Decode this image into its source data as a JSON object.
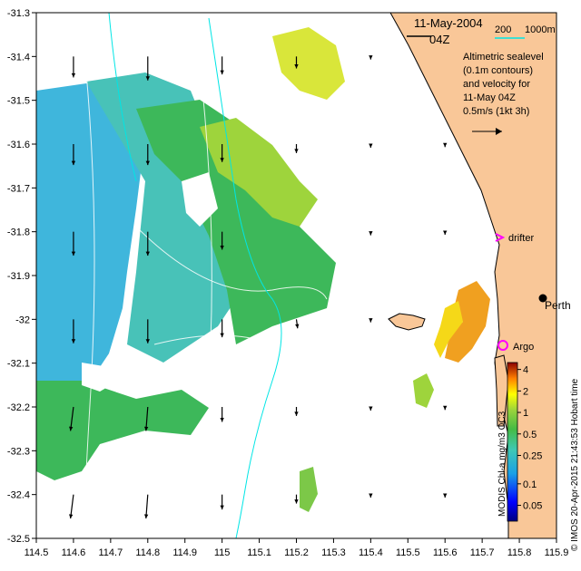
{
  "map": {
    "x_ticks": [
      "114.5",
      "114.6",
      "114.7",
      "114.8",
      "114.9",
      "115",
      "115.1",
      "115.2",
      "115.3",
      "115.4",
      "115.5",
      "115.6",
      "115.7",
      "115.8",
      "115.9"
    ],
    "y_ticks": [
      "-31.3",
      "-31.4",
      "-31.5",
      "-31.6",
      "-31.7",
      "-31.8",
      "-31.9",
      "-32",
      "-32.1",
      "-32.2",
      "-32.3",
      "-32.4",
      "-32.5"
    ],
    "x_range": [
      114.5,
      115.9
    ],
    "y_range": [
      -32.5,
      -31.3
    ]
  },
  "info": {
    "date": "11-May-2004",
    "time": "04Z",
    "bathy_labels": [
      "200",
      "1000m"
    ],
    "legend_lines": [
      "Altimetric sealevel",
      "(0.1m contours)",
      "and velocity for",
      "11-May 04Z",
      "0.5m/s (1kt 3h)"
    ]
  },
  "places": {
    "perth": "Perth",
    "drifter": "drifter",
    "argo": "Argo"
  },
  "colorbar": {
    "ticks": [
      "4",
      "2",
      "1",
      "0.5",
      "0.25",
      "0.1",
      "0.05"
    ],
    "tick_values": [
      4,
      2,
      1,
      0.5,
      0.25,
      0.1,
      0.05
    ],
    "range": [
      0.03,
      5
    ],
    "scale": "log"
  },
  "credits": {
    "vertical": "© IMOS 20-Apr-2015 21:43:53 Hobart time",
    "product": "MODIS Chl-a mg/m3 OC3"
  },
  "colors": {
    "land": "#f9c798",
    "ocean": "#ffffff",
    "magenta": "#ff00ff",
    "contour": "#ffffff",
    "bathy": "#00e5e5"
  },
  "arrows": [
    {
      "lon": 114.6,
      "lat": -31.4,
      "u": 0.0,
      "v": -0.35
    },
    {
      "lon": 114.8,
      "lat": -31.4,
      "u": 0.0,
      "v": -0.4
    },
    {
      "lon": 115.0,
      "lat": -31.4,
      "u": 0.0,
      "v": -0.3
    },
    {
      "lon": 115.2,
      "lat": -31.4,
      "u": 0.0,
      "v": -0.2
    },
    {
      "lon": 114.6,
      "lat": -31.6,
      "u": 0.0,
      "v": -0.35
    },
    {
      "lon": 114.8,
      "lat": -31.6,
      "u": 0.0,
      "v": -0.35
    },
    {
      "lon": 115.0,
      "lat": -31.6,
      "u": 0.0,
      "v": -0.3
    },
    {
      "lon": 115.2,
      "lat": -31.6,
      "u": 0.0,
      "v": -0.15
    },
    {
      "lon": 114.6,
      "lat": -31.8,
      "u": 0.0,
      "v": -0.4
    },
    {
      "lon": 114.8,
      "lat": -31.8,
      "u": 0.0,
      "v": -0.4
    },
    {
      "lon": 115.0,
      "lat": -31.8,
      "u": 0.0,
      "v": -0.3
    },
    {
      "lon": 114.6,
      "lat": -32.0,
      "u": 0.0,
      "v": -0.4
    },
    {
      "lon": 114.8,
      "lat": -32.0,
      "u": 0.0,
      "v": -0.4
    },
    {
      "lon": 115.0,
      "lat": -32.0,
      "u": 0.0,
      "v": -0.3
    },
    {
      "lon": 115.2,
      "lat": -32.0,
      "u": 0.02,
      "v": -0.15
    },
    {
      "lon": 114.6,
      "lat": -32.2,
      "u": -0.05,
      "v": -0.4
    },
    {
      "lon": 114.8,
      "lat": -32.2,
      "u": -0.03,
      "v": -0.4
    },
    {
      "lon": 115.0,
      "lat": -32.2,
      "u": 0.0,
      "v": -0.25
    },
    {
      "lon": 115.2,
      "lat": -32.2,
      "u": 0.0,
      "v": -0.15
    },
    {
      "lon": 114.6,
      "lat": -32.4,
      "u": -0.05,
      "v": -0.4
    },
    {
      "lon": 114.8,
      "lat": -32.4,
      "u": -0.03,
      "v": -0.4
    },
    {
      "lon": 115.0,
      "lat": -32.4,
      "u": 0.0,
      "v": -0.25
    },
    {
      "lon": 115.2,
      "lat": -32.4,
      "u": 0.0,
      "v": -0.15
    },
    {
      "lon": 115.4,
      "lat": -31.6,
      "u": 0.0,
      "v": -0.06
    },
    {
      "lon": 115.6,
      "lat": -31.6,
      "u": 0.0,
      "v": -0.05
    },
    {
      "lon": 115.4,
      "lat": -31.8,
      "u": 0.0,
      "v": -0.06
    },
    {
      "lon": 115.6,
      "lat": -31.8,
      "u": 0.0,
      "v": -0.05
    },
    {
      "lon": 115.4,
      "lat": -32.0,
      "u": 0.0,
      "v": -0.05
    },
    {
      "lon": 115.4,
      "lat": -32.2,
      "u": 0.0,
      "v": -0.06
    },
    {
      "lon": 115.6,
      "lat": -32.2,
      "u": 0.0,
      "v": -0.05
    },
    {
      "lon": 115.4,
      "lat": -32.4,
      "u": 0.0,
      "v": -0.05
    },
    {
      "lon": 115.6,
      "lat": -32.4,
      "u": 0.0,
      "v": -0.05
    },
    {
      "lon": 115.4,
      "lat": -31.4,
      "u": 0.0,
      "v": -0.05
    }
  ]
}
